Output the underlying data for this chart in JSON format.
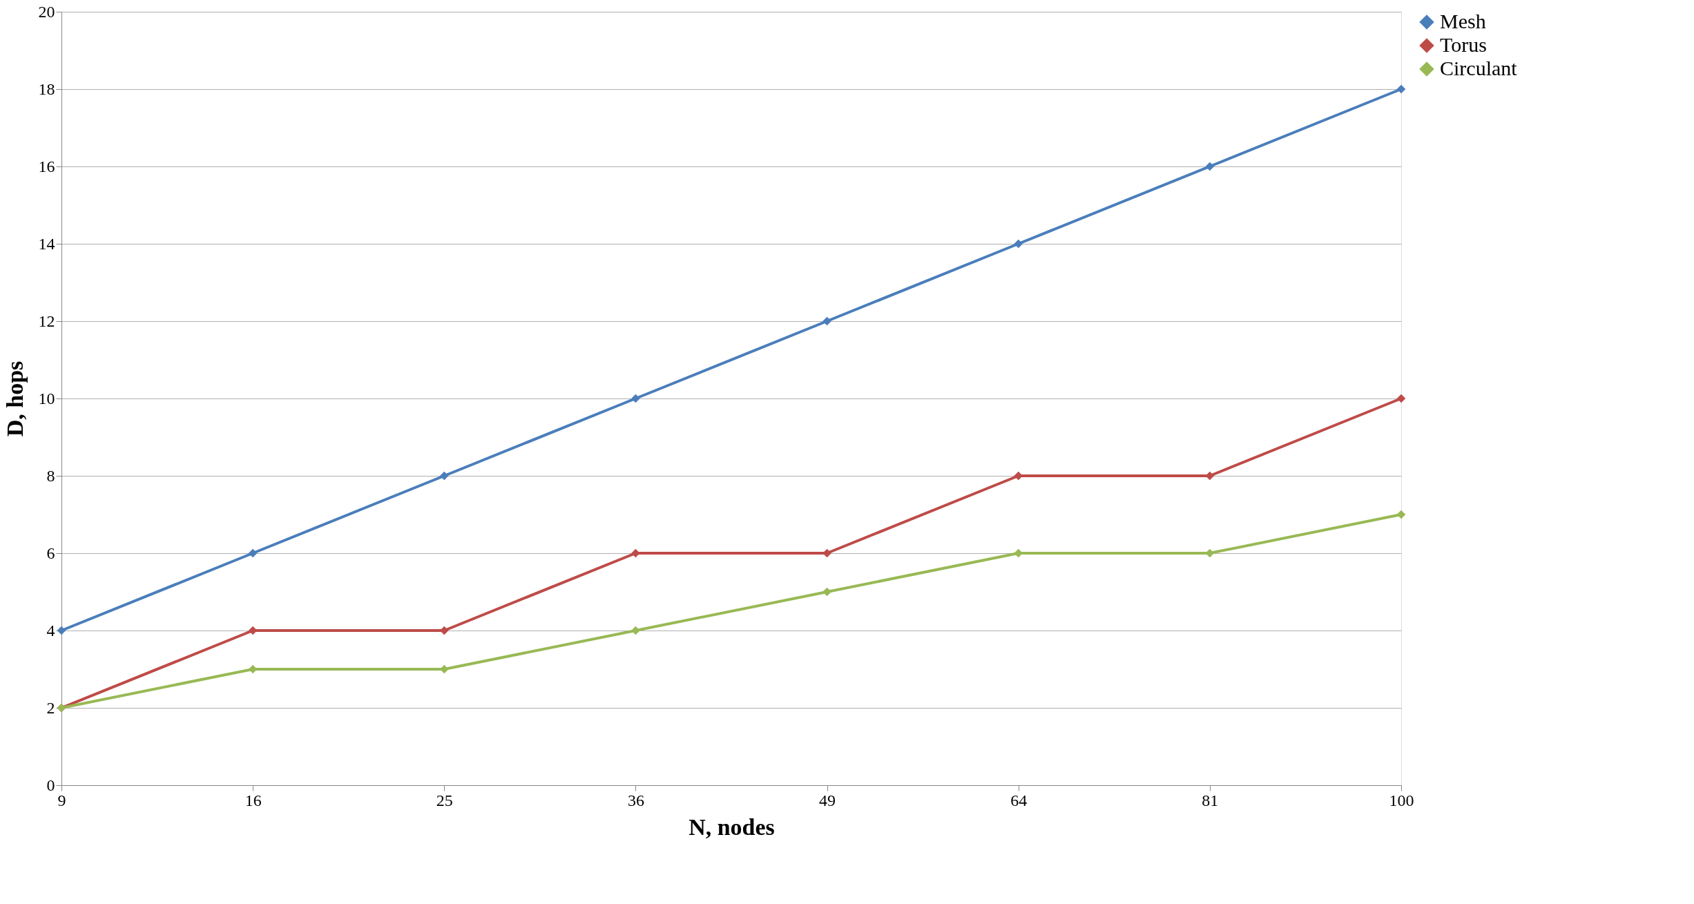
{
  "chart_data": {
    "type": "line",
    "xlabel": "N, nodes",
    "ylabel": "D, hops",
    "categories": [
      "9",
      "16",
      "25",
      "36",
      "49",
      "64",
      "81",
      "100"
    ],
    "series": [
      {
        "name": "Mesh",
        "color": "#4a7ebb",
        "values": [
          4,
          6,
          8,
          10,
          12,
          14,
          16,
          18
        ]
      },
      {
        "name": "Torus",
        "color": "#be4b48",
        "values": [
          2,
          4,
          4,
          6,
          6,
          8,
          8,
          10
        ]
      },
      {
        "name": "Circulant",
        "color": "#98b954",
        "values": [
          2,
          3,
          3,
          4,
          5,
          6,
          6,
          7
        ]
      }
    ],
    "ylim": [
      0,
      20
    ],
    "yticks": [
      0,
      2,
      4,
      6,
      8,
      10,
      12,
      14,
      16,
      18,
      20
    ],
    "grid": "y",
    "legend": "right",
    "marker": "diamond",
    "line_style": "solid"
  }
}
